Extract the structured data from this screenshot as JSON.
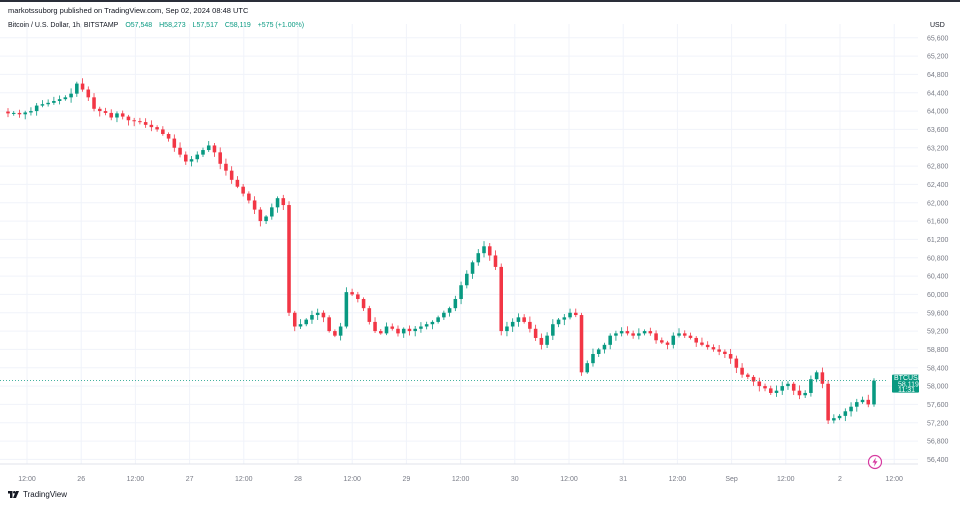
{
  "publisher_text": "markotssuborg published on TradingView.com, Sep 02, 2024 08:48 UTC",
  "header": {
    "symbol": "Bitcoin / U.S. Dollar, 1h, BITSTAMP",
    "open": "O57,548",
    "high": "H58,273",
    "low": "L57,517",
    "close": "C58,119",
    "change": "+575 (+1.00%)"
  },
  "currency": "USD",
  "watermark": "TradingView",
  "price_tag": {
    "symbol": "BTCUSD",
    "price": "58,119",
    "countdown": "11:31"
  },
  "colors": {
    "up": "#089981",
    "down": "#f23645",
    "grid": "#f0f3fa",
    "axis_text": "#787b86"
  },
  "icons": [
    "tradingview-logo-icon",
    "lightning-icon"
  ],
  "chart_data": {
    "type": "candlestick",
    "timeframe": "1h",
    "y_axis_ticks": [
      "65,600",
      "65,200",
      "64,800",
      "64,400",
      "64,000",
      "63,600",
      "63,200",
      "62,800",
      "62,400",
      "62,000",
      "61,600",
      "61,200",
      "60,800",
      "60,400",
      "60,000",
      "59,600",
      "59,200",
      "58,800",
      "58,400",
      "58,000",
      "57,600",
      "57,200",
      "56,800",
      "56,400"
    ],
    "ylim": [
      56300,
      65900
    ],
    "x_axis_ticks": [
      "12:00",
      "26",
      "12:00",
      "27",
      "12:00",
      "28",
      "12:00",
      "29",
      "12:00",
      "30",
      "12:00",
      "31",
      "12:00",
      "Sep",
      "12:00",
      "2",
      "12:00"
    ],
    "last_price": 58119,
    "series_close": [
      63950,
      63960,
      63930,
      63970,
      64000,
      64120,
      64150,
      64180,
      64220,
      64260,
      64300,
      64380,
      64600,
      64470,
      64300,
      64050,
      64000,
      63960,
      63860,
      63950,
      63880,
      63800,
      63780,
      63760,
      63700,
      63650,
      63600,
      63500,
      63400,
      63200,
      63050,
      62900,
      62950,
      63050,
      63150,
      63250,
      63100,
      62850,
      62700,
      62500,
      62350,
      62200,
      62050,
      61850,
      61600,
      61700,
      61900,
      62100,
      61950,
      59600,
      59300,
      59350,
      59450,
      59550,
      59600,
      59500,
      59200,
      59100,
      59300,
      60050,
      60000,
      59900,
      59700,
      59400,
      59200,
      59150,
      59300,
      59250,
      59150,
      59250,
      59200,
      59250,
      59300,
      59350,
      59400,
      59500,
      59600,
      59700,
      59900,
      60200,
      60450,
      60700,
      60900,
      61050,
      60850,
      60600,
      59200,
      59300,
      59400,
      59500,
      59400,
      59250,
      59050,
      58900,
      59100,
      59350,
      59450,
      59500,
      59600,
      59550,
      58300,
      58500,
      58700,
      58800,
      58900,
      59100,
      59150,
      59200,
      59150,
      59100,
      59150,
      59200,
      59150,
      59000,
      58950,
      58900,
      59100,
      59150,
      59100,
      59050,
      58950,
      58900,
      58850,
      58800,
      58750,
      58700,
      58600,
      58400,
      58250,
      58200,
      58100,
      58000,
      57950,
      57850,
      57900,
      58000,
      58050,
      57900,
      57800,
      57850,
      58150,
      58300,
      58050,
      57250,
      57300,
      57350,
      57450,
      57550,
      57650,
      57700,
      57600,
      58119
    ]
  }
}
